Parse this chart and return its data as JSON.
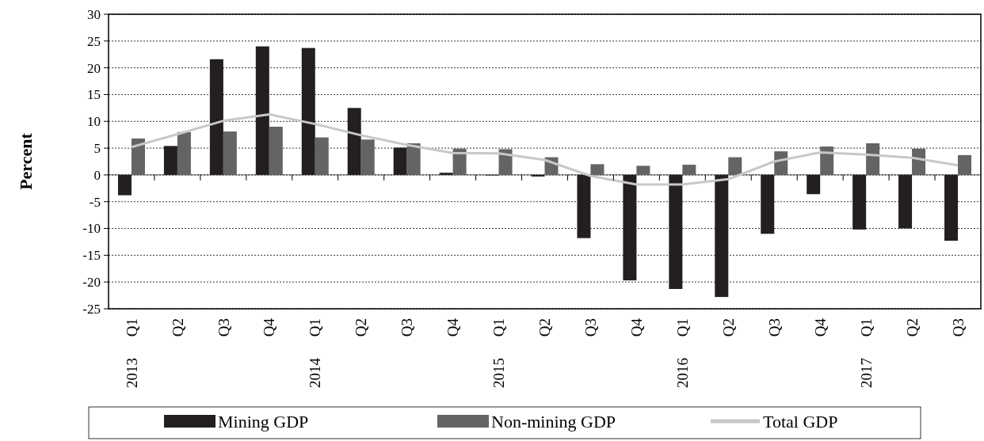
{
  "chart_data": {
    "type": "bar",
    "ylabel": "Percent",
    "categories": [
      "Q1",
      "Q2",
      "Q3",
      "Q4",
      "Q1",
      "Q2",
      "Q3",
      "Q4",
      "Q1",
      "Q2",
      "Q3",
      "Q4",
      "Q1",
      "Q2",
      "Q3",
      "Q4",
      "Q1",
      "Q2",
      "Q3"
    ],
    "series": [
      {
        "name": "Mining GDP",
        "color": "#231f20",
        "values": [
          -3.8,
          5.4,
          21.6,
          24.0,
          23.7,
          12.5,
          5.1,
          0.4,
          -0.1,
          -0.3,
          -11.8,
          -19.7,
          -21.3,
          -22.8,
          -11.0,
          -3.6,
          -10.2,
          -10.0,
          -12.3
        ]
      },
      {
        "name": "Non-mining GDP",
        "color": "#646464",
        "values": [
          6.8,
          8.0,
          8.1,
          9.0,
          7.0,
          6.6,
          5.9,
          4.9,
          4.8,
          3.3,
          2.0,
          1.7,
          1.9,
          3.3,
          4.4,
          5.3,
          5.9,
          4.9,
          3.7
        ]
      },
      {
        "name": "Total GDP",
        "type": "line",
        "color": "#c8c8c8",
        "values": [
          5.2,
          7.6,
          10.1,
          11.3,
          9.5,
          7.4,
          5.6,
          4.1,
          4.0,
          2.8,
          -0.2,
          -1.8,
          -1.8,
          -0.8,
          2.5,
          4.2,
          3.8,
          3.2,
          1.8
        ]
      }
    ],
    "annotations": [
      "2013",
      "2014",
      "2015",
      "2016",
      "2017"
    ],
    "ylim": [
      -25,
      30
    ],
    "yticks": [
      -25,
      -20,
      -15,
      -10,
      -5,
      0,
      5,
      10,
      15,
      20,
      25,
      30
    ],
    "grid": "y",
    "legend": "bottom"
  }
}
